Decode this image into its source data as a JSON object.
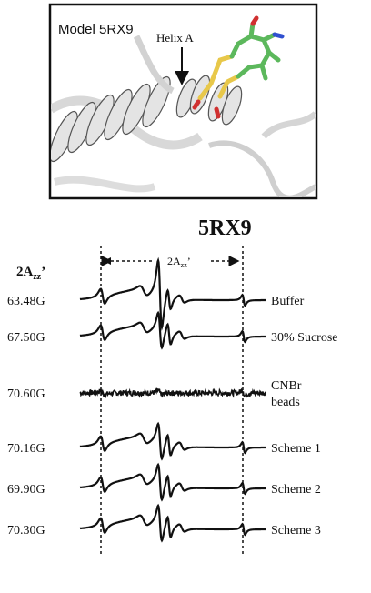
{
  "structure_panel": {
    "label": "Model 5RX9",
    "annotation": "Helix A"
  },
  "spectra_panel": {
    "title": "5RX9",
    "measure_label": {
      "main": "2A",
      "sub": "zz",
      "prime": "’"
    },
    "span_label": {
      "main": "2A",
      "sub": "zz",
      "prime": "’"
    },
    "rows": [
      {
        "value": "63.48G",
        "condition": [
          "Buffer"
        ]
      },
      {
        "value": "67.50G",
        "condition": [
          "30% Sucrose"
        ]
      },
      {
        "value": "70.60G",
        "condition": [
          "CNBr",
          "beads"
        ]
      },
      {
        "value": "70.16G",
        "condition": [
          "Scheme 1"
        ]
      },
      {
        "value": "69.90G",
        "condition": [
          "Scheme 2"
        ]
      },
      {
        "value": "70.30G",
        "condition": [
          "Scheme 3"
        ]
      }
    ]
  }
}
